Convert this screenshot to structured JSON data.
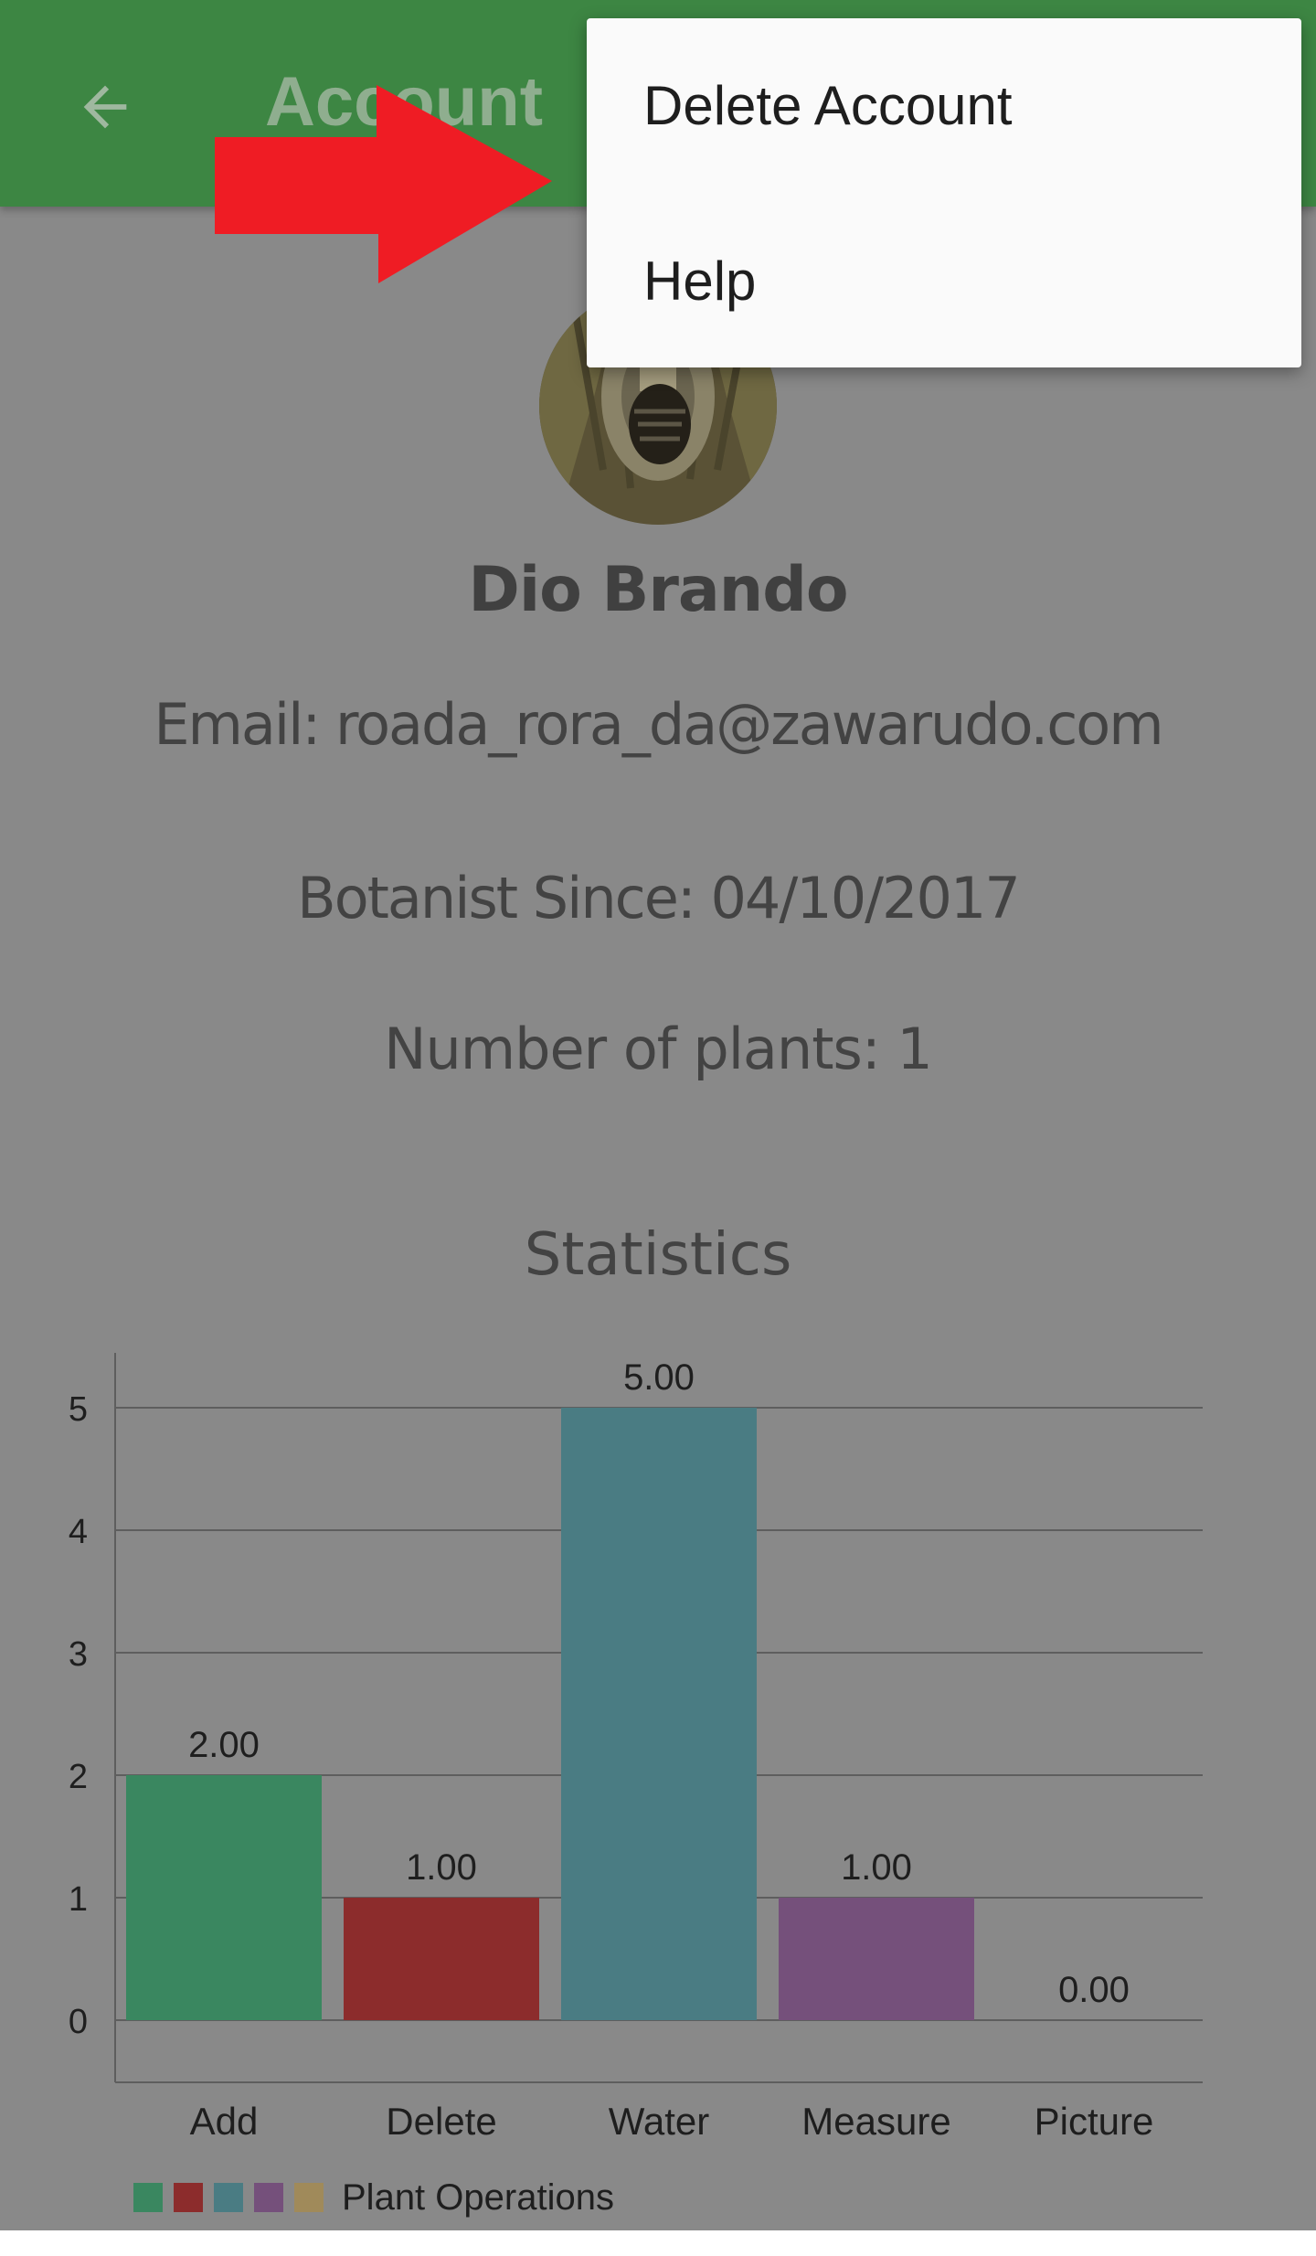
{
  "appbar": {
    "title": "Account"
  },
  "menu": {
    "items": [
      "Delete Account",
      "Help"
    ]
  },
  "profile": {
    "name": "Dio Brando",
    "email_line": "Email: roada_rora_da@zawarudo.com",
    "since_line": "Botanist Since: 04/10/2017",
    "plants_line": "Number of plants: 1"
  },
  "statistics_title": "Statistics",
  "colors": {
    "appbar": "#3d8643",
    "arrow": "#ef1c24",
    "add": "#3a8760",
    "delete": "#8c2c2c",
    "water": "#4a7c83",
    "measure": "#75507b",
    "picture": "#a08a5a"
  },
  "chart_data": {
    "type": "bar",
    "categories": [
      "Add",
      "Delete",
      "Water",
      "Measure",
      "Picture"
    ],
    "values": [
      2,
      1,
      5,
      1,
      0
    ],
    "value_labels": [
      "2.00",
      "1.00",
      "5.00",
      "1.00",
      "0.00"
    ],
    "ylim": [
      0,
      5
    ],
    "yticks": [
      0,
      1,
      2,
      3,
      4,
      5
    ],
    "grid": true,
    "legend": {
      "label": "Plant Operations",
      "placement": "bottom-left"
    }
  }
}
